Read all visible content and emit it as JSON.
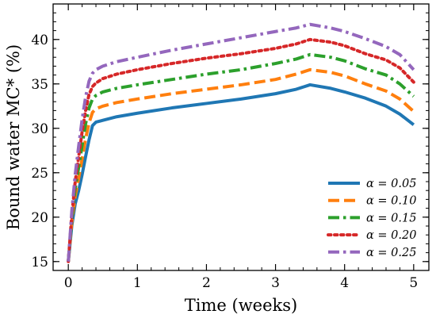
{
  "chart_data": {
    "type": "line",
    "title": "",
    "xlabel": "Time (weeks)",
    "ylabel": "Bound water MC* (%)",
    "xlim": [
      -0.22,
      5.22
    ],
    "ylim": [
      14.0,
      44.0
    ],
    "xticks": [
      0,
      1,
      2,
      3,
      4,
      5
    ],
    "yticks": [
      15,
      20,
      25,
      30,
      35,
      40
    ],
    "minor_xticks": [
      0.2,
      0.4,
      0.6,
      0.8,
      1.2,
      1.4,
      1.6,
      1.8,
      2.2,
      2.4,
      2.6,
      2.8,
      3.2,
      3.4,
      3.6,
      3.8,
      4.2,
      4.4,
      4.6,
      4.8
    ],
    "minor_yticks": [
      15,
      16,
      17,
      18,
      19,
      20,
      21,
      22,
      23,
      24,
      25,
      26,
      27,
      28,
      29,
      30,
      31,
      32,
      33,
      34,
      35,
      36,
      37,
      38,
      39,
      40,
      41,
      42,
      43
    ],
    "grid": false,
    "legend_position": "bottom-right",
    "x": [
      0.0,
      0.05,
      0.1,
      0.15,
      0.2,
      0.25,
      0.3,
      0.35,
      0.4,
      0.5,
      0.7,
      1.0,
      1.5,
      2.0,
      2.5,
      3.0,
      3.3,
      3.5,
      3.8,
      4.0,
      4.3,
      4.6,
      4.8,
      5.0
    ],
    "series": [
      {
        "name": "α = 0.05",
        "color": "#1f77b4",
        "style": "solid",
        "values": [
          15.0,
          19.0,
          21.5,
          23.0,
          24.8,
          26.8,
          28.7,
          30.3,
          30.7,
          30.9,
          31.3,
          31.7,
          32.3,
          32.8,
          33.3,
          33.9,
          34.4,
          34.9,
          34.5,
          34.1,
          33.4,
          32.5,
          31.6,
          30.4
        ]
      },
      {
        "name": "α = 0.10",
        "color": "#ff7f0e",
        "style": "dashed",
        "values": [
          15.0,
          19.4,
          22.4,
          24.4,
          26.6,
          28.8,
          30.6,
          31.8,
          32.2,
          32.5,
          32.9,
          33.3,
          33.9,
          34.4,
          34.9,
          35.5,
          36.1,
          36.6,
          36.3,
          35.9,
          35.0,
          34.2,
          33.3,
          31.9
        ]
      },
      {
        "name": "α = 0.15",
        "color": "#2ca02c",
        "style": "dashdot",
        "values": [
          15.0,
          19.8,
          23.2,
          25.6,
          28.1,
          30.5,
          32.3,
          33.3,
          33.7,
          34.1,
          34.5,
          34.9,
          35.5,
          36.1,
          36.6,
          37.3,
          37.8,
          38.3,
          38.0,
          37.6,
          36.7,
          36.0,
          35.0,
          33.6
        ]
      },
      {
        "name": "α = 0.20",
        "color": "#d62728",
        "style": "dotted",
        "values": [
          15.0,
          20.2,
          24.0,
          26.8,
          29.6,
          32.0,
          33.8,
          34.7,
          35.1,
          35.6,
          36.1,
          36.6,
          37.3,
          37.9,
          38.4,
          39.0,
          39.5,
          40.0,
          39.7,
          39.3,
          38.4,
          37.7,
          36.8,
          35.2
        ]
      },
      {
        "name": "α = 0.25",
        "color": "#9467bd",
        "style": "dashdot",
        "values": [
          15.0,
          20.6,
          24.8,
          28.0,
          31.0,
          33.5,
          35.3,
          36.2,
          36.6,
          37.0,
          37.5,
          38.0,
          38.8,
          39.5,
          40.2,
          40.9,
          41.3,
          41.7,
          41.3,
          40.9,
          40.1,
          39.2,
          38.3,
          36.6
        ]
      }
    ]
  }
}
